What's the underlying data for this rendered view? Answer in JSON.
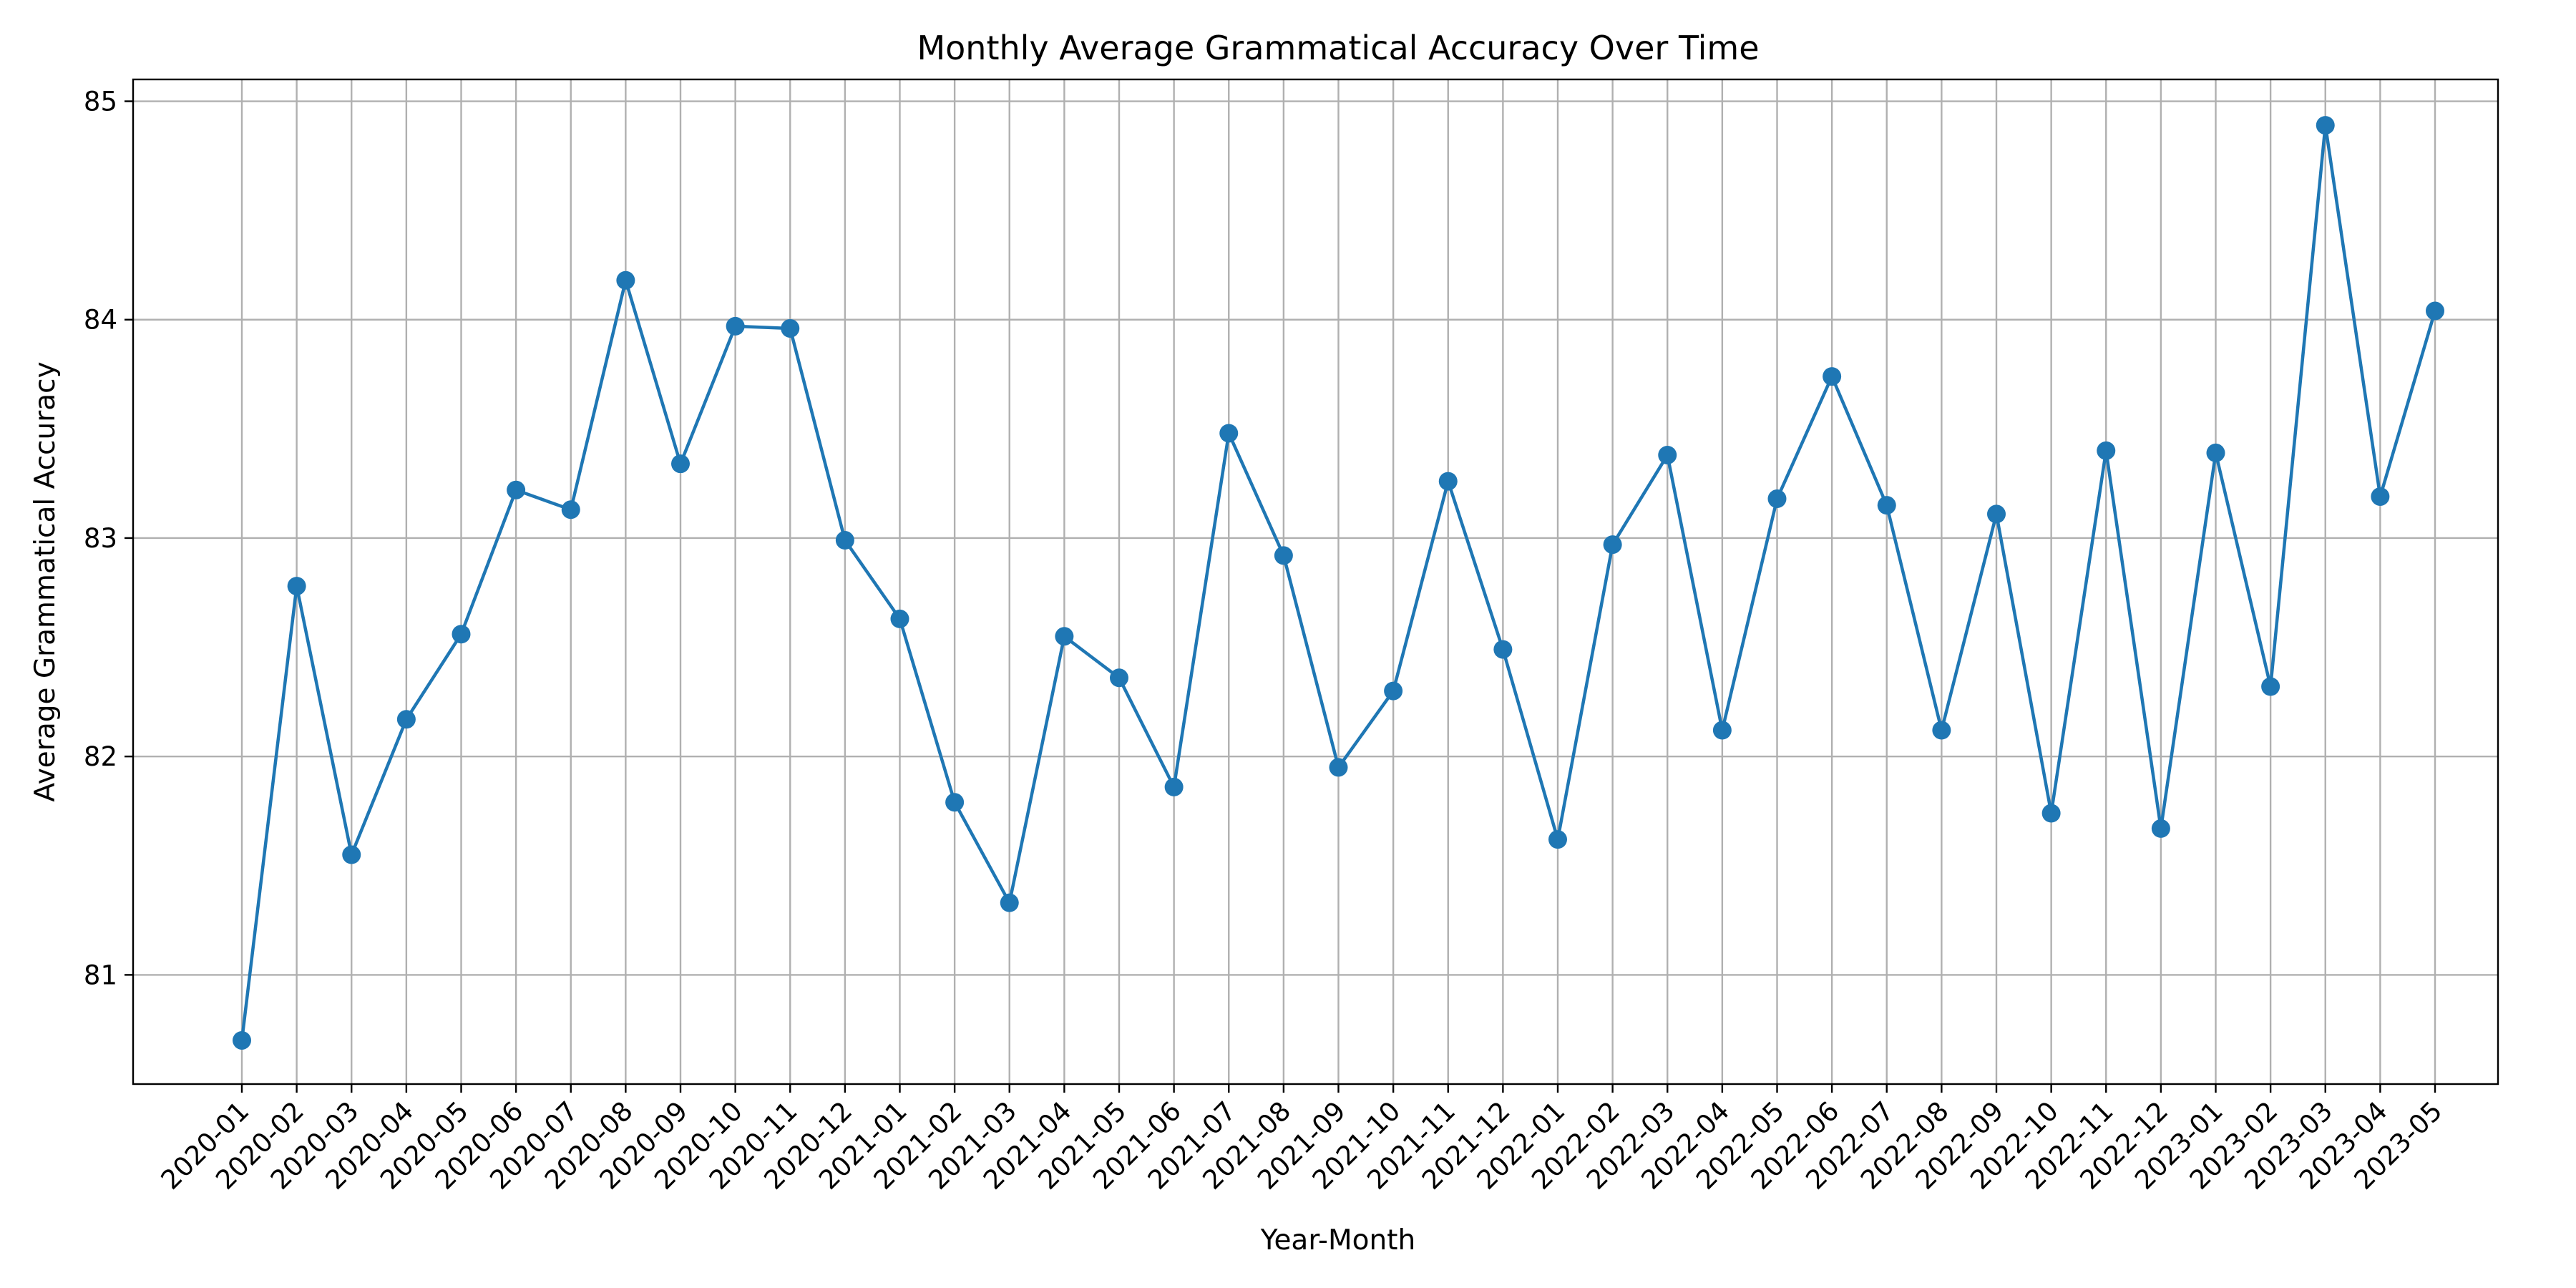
{
  "chart_data": {
    "type": "line",
    "title": "Monthly Average Grammatical Accuracy Over Time",
    "xlabel": "Year-Month",
    "ylabel": "Average Grammatical Accuracy",
    "categories": [
      "2020-01",
      "2020-02",
      "2020-03",
      "2020-04",
      "2020-05",
      "2020-06",
      "2020-07",
      "2020-08",
      "2020-09",
      "2020-10",
      "2020-11",
      "2020-12",
      "2021-01",
      "2021-02",
      "2021-03",
      "2021-04",
      "2021-05",
      "2021-06",
      "2021-07",
      "2021-08",
      "2021-09",
      "2021-10",
      "2021-11",
      "2021-12",
      "2022-01",
      "2022-02",
      "2022-03",
      "2022-04",
      "2022-05",
      "2022-06",
      "2022-07",
      "2022-08",
      "2022-09",
      "2022-10",
      "2022-11",
      "2022-12",
      "2023-01",
      "2023-02",
      "2023-03",
      "2023-04",
      "2023-05"
    ],
    "series": [
      {
        "values": [
          80.7,
          82.78,
          81.55,
          82.17,
          82.56,
          83.22,
          83.13,
          84.18,
          83.34,
          83.97,
          83.96,
          82.99,
          82.63,
          81.79,
          81.33,
          82.55,
          82.36,
          81.86,
          83.48,
          82.92,
          81.95,
          82.3,
          83.26,
          82.49,
          81.62,
          82.97,
          83.38,
          82.12,
          83.18,
          83.74,
          83.15,
          82.12,
          83.11,
          81.74,
          83.4,
          81.67,
          83.39,
          82.32,
          84.89,
          83.19,
          84.04
        ],
        "color": "#1f77b4"
      }
    ],
    "yticks": [
      81,
      82,
      83,
      84,
      85
    ],
    "ylim": [
      80.5,
      85.1
    ],
    "grid": true,
    "legend": "none"
  }
}
